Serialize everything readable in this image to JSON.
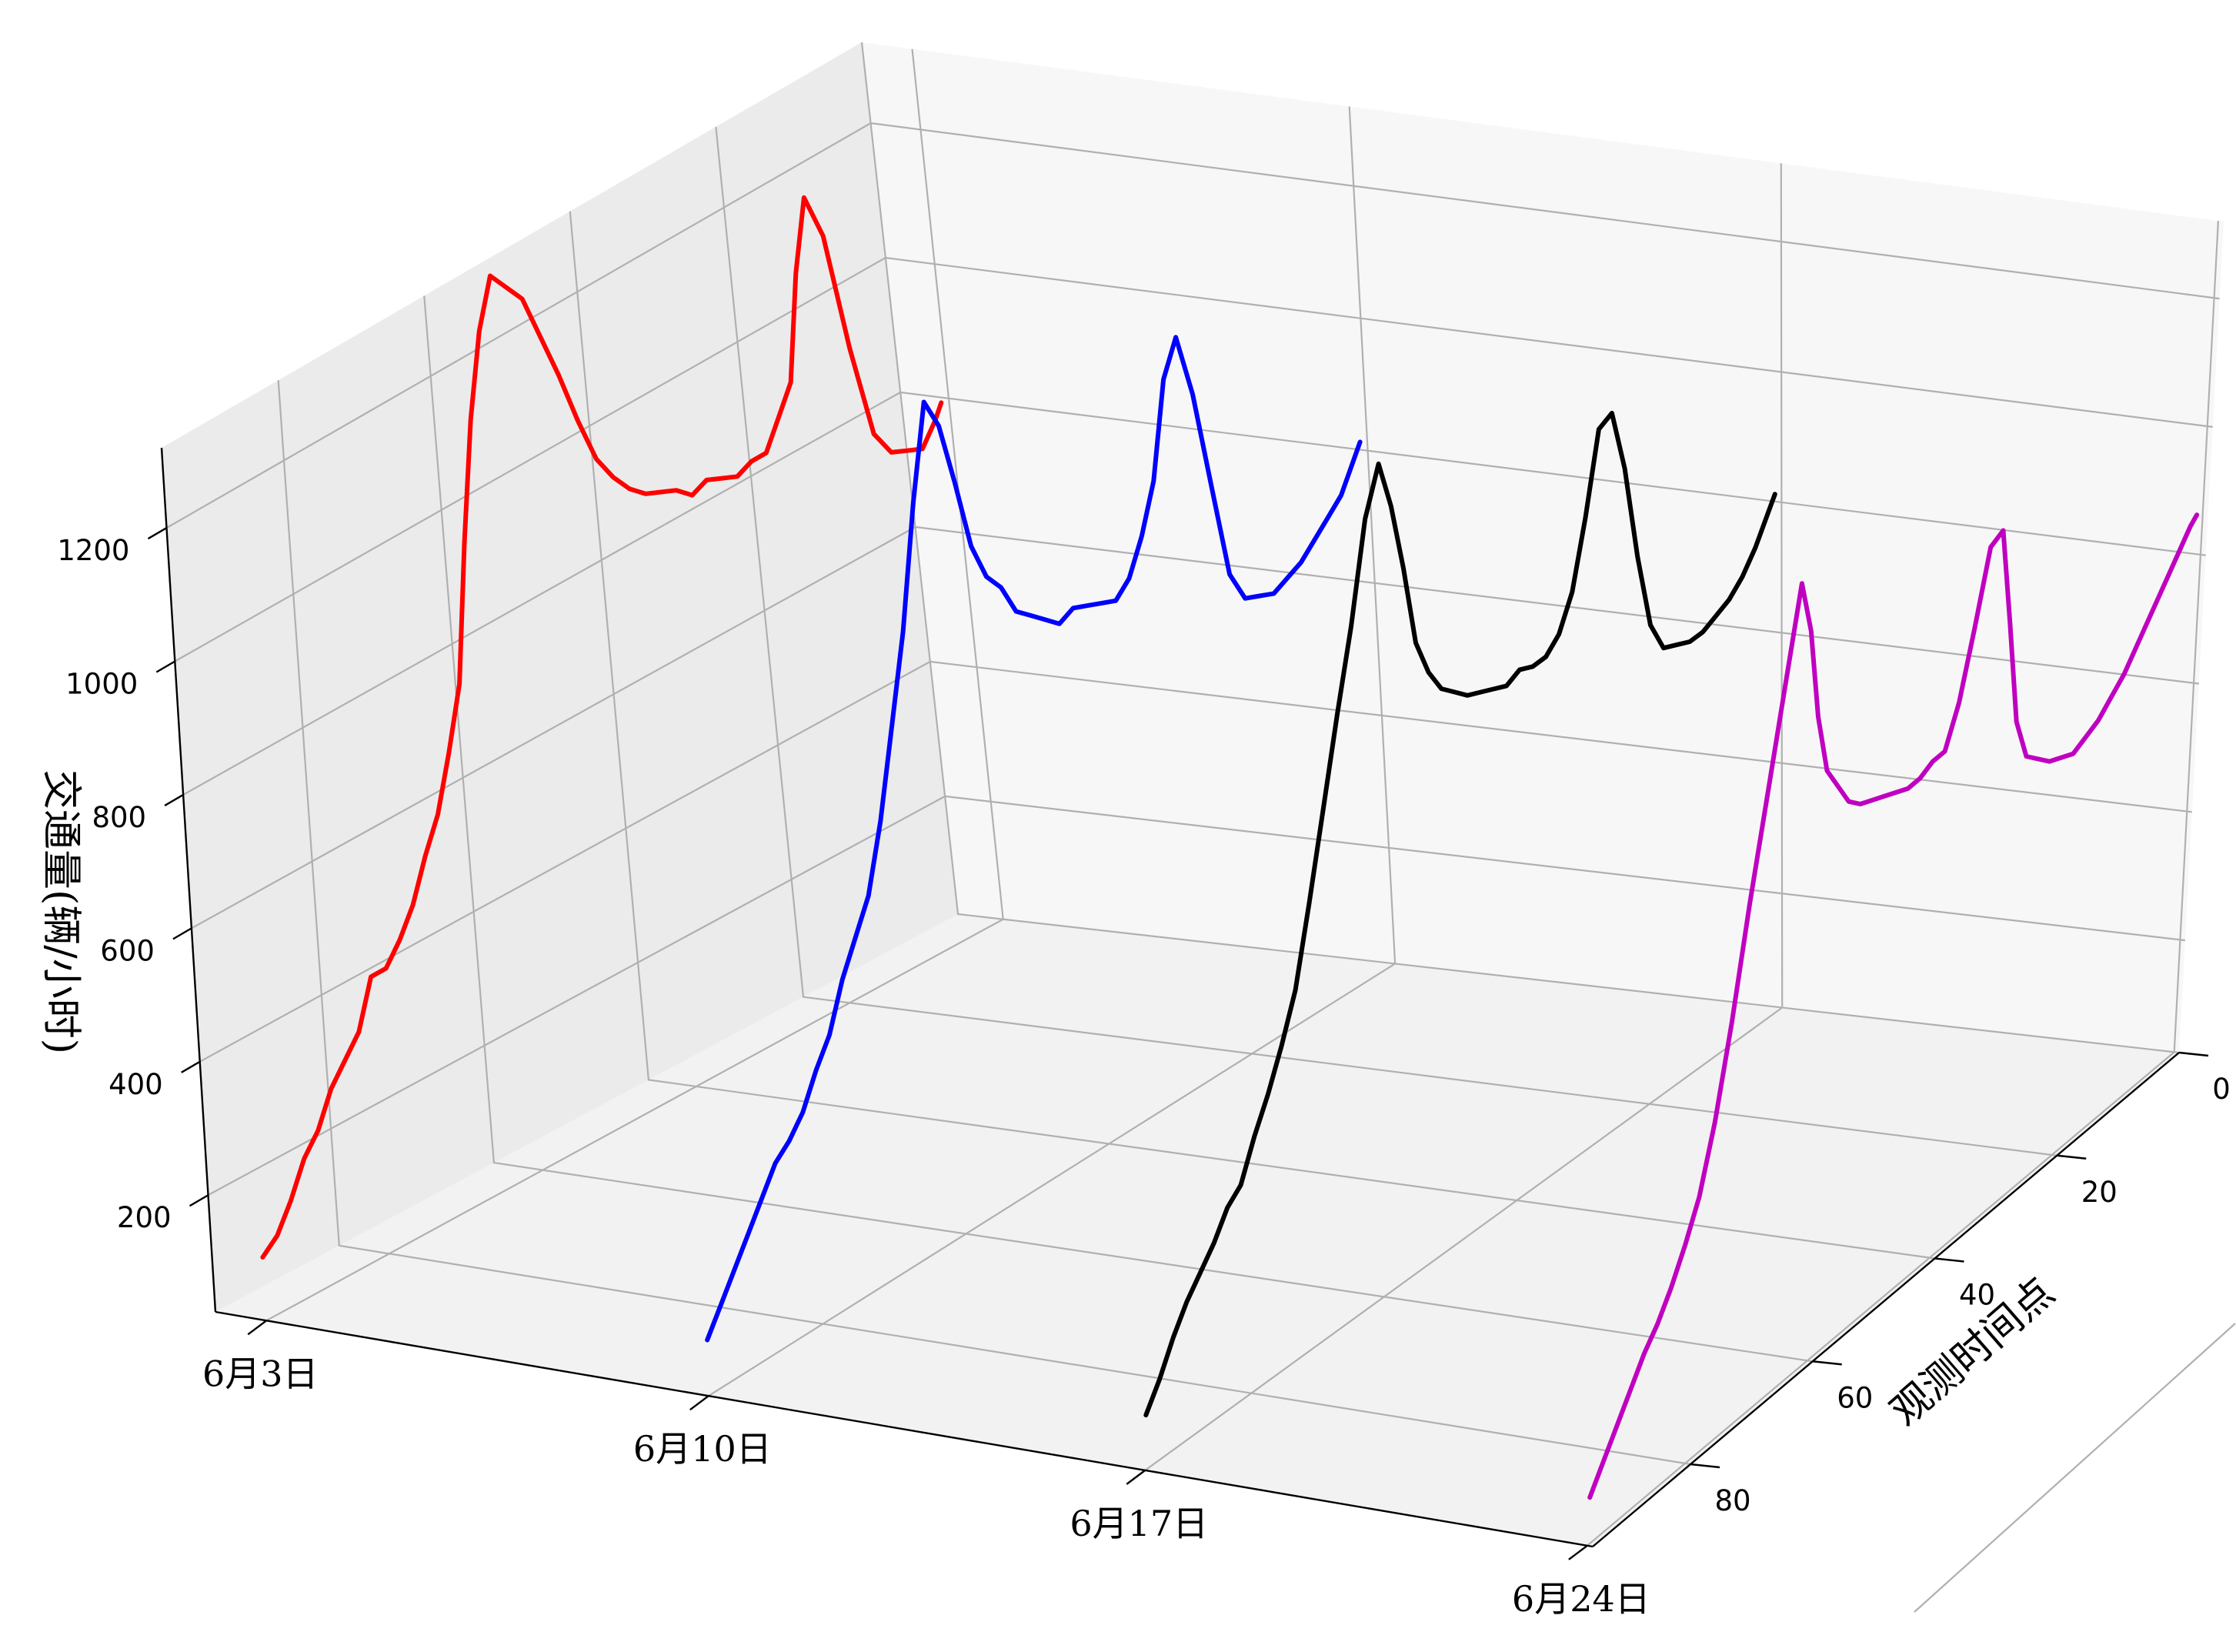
{
  "chart_data": {
    "type": "line",
    "view": "3d",
    "title": "",
    "zlabel": "交通量(辆/小时)",
    "ylabel": "观测时间点",
    "xlabel": "",
    "z_ticks": [
      200,
      400,
      600,
      800,
      1000,
      1200
    ],
    "y_ticks": [
      0,
      20,
      40,
      60,
      80
    ],
    "x_ticks": [
      "6月3日",
      "6月10日",
      "6月17日",
      "6月24日"
    ],
    "ylim": [
      0,
      96
    ],
    "zlim": [
      25,
      1320
    ],
    "grid": true,
    "series": [
      {
        "name": "",
        "date": "6月3日",
        "color": "#ff0000",
        "y": [
          0,
          2,
          4,
          6,
          8,
          10,
          12,
          14,
          16,
          18,
          20,
          22,
          24,
          26,
          28,
          30,
          32,
          34,
          36,
          38,
          40,
          42,
          44,
          46,
          48,
          50,
          52,
          54,
          56,
          58,
          60,
          62,
          64,
          66,
          68,
          70,
          72,
          74,
          76,
          78,
          80,
          82,
          84,
          86,
          88,
          90,
          92,
          94,
          95
        ],
        "values": [
          120,
          140,
          180,
          230,
          260,
          310,
          340,
          370,
          440,
          440,
          470,
          510,
          570,
          620,
          700,
          790,
          990,
          1160,
          1280,
          1350,
          1320,
          1290,
          1220,
          1150,
          1070,
          1000,
          960,
          930,
          910,
          900,
          890,
          870,
          880,
          870,
          860,
          870,
          870,
          910,
          950,
          1100,
          1200,
          1130,
          950,
          810,
          770,
          760,
          750,
          780,
          800
        ]
      },
      {
        "name": "",
        "date": "6月10日",
        "color": "#0000ff",
        "y": [
          0,
          2,
          4,
          6,
          8,
          10,
          12,
          14,
          16,
          18,
          20,
          22,
          24,
          26,
          28,
          30,
          32,
          34,
          36,
          38,
          40,
          42,
          44,
          46,
          48,
          50,
          52,
          54,
          56,
          58,
          60,
          62,
          64,
          66,
          68,
          70,
          72,
          74,
          76,
          78,
          80,
          82,
          84,
          86,
          88,
          90,
          92,
          94,
          95
        ],
        "values": [
          110,
          150,
          190,
          230,
          270,
          310,
          330,
          360,
          410,
          450,
          520,
          570,
          620,
          720,
          850,
          980,
          1160,
          1300,
          1250,
          1150,
          1040,
          980,
          950,
          900,
          880,
          860,
          840,
          850,
          840,
          830,
          820,
          840,
          890,
          960,
          1100,
          1150,
          1050,
          900,
          750,
          700,
          690,
          680,
          690,
          700,
          720,
          740,
          760,
          800,
          820
        ]
      },
      {
        "name": "",
        "date": "6月17日",
        "color": "#000000",
        "y": [
          0,
          2,
          4,
          6,
          8,
          10,
          12,
          14,
          16,
          18,
          20,
          22,
          24,
          26,
          28,
          30,
          32,
          34,
          36,
          38,
          40,
          42,
          44,
          46,
          48,
          50,
          52,
          54,
          56,
          58,
          60,
          62,
          64,
          66,
          68,
          70,
          72,
          74,
          76,
          78,
          80,
          82,
          84,
          86,
          88,
          90,
          92,
          94,
          95
        ],
        "values": [
          110,
          150,
          200,
          240,
          270,
          300,
          340,
          360,
          420,
          470,
          530,
          600,
          720,
          850,
          980,
          1100,
          1250,
          1320,
          1240,
          1130,
          1000,
          940,
          900,
          880,
          860,
          850,
          840,
          830,
          840,
          830,
          830,
          850,
          900,
          1000,
          1120,
          1130,
          1030,
          880,
          760,
          710,
          700,
          690,
          690,
          700,
          710,
          730,
          760,
          800,
          820
        ]
      },
      {
        "name": "",
        "date": "6月24日",
        "color": "#c000c0",
        "y": [
          0,
          2,
          4,
          6,
          8,
          10,
          12,
          14,
          16,
          18,
          20,
          22,
          24,
          26,
          28,
          30,
          32,
          34,
          36,
          38,
          40,
          42,
          44,
          46,
          48,
          50,
          52,
          54,
          56,
          58,
          60,
          62,
          64,
          66,
          68,
          70,
          72,
          74,
          76,
          78,
          80,
          82,
          84,
          86,
          88,
          90,
          92,
          94,
          95
        ],
        "values": [
          100,
          140,
          180,
          220,
          260,
          290,
          330,
          380,
          440,
          540,
          680,
          850,
          1000,
          1150,
          1300,
          1210,
          1060,
          960,
          920,
          880,
          860,
          850,
          840,
          830,
          820,
          820,
          830,
          830,
          890,
          990,
          1100,
          1110,
          950,
          780,
          710,
          690,
          670,
          660,
          650,
          660,
          670,
          690,
          710,
          740,
          770,
          800,
          830,
          860,
          870
        ]
      }
    ]
  }
}
